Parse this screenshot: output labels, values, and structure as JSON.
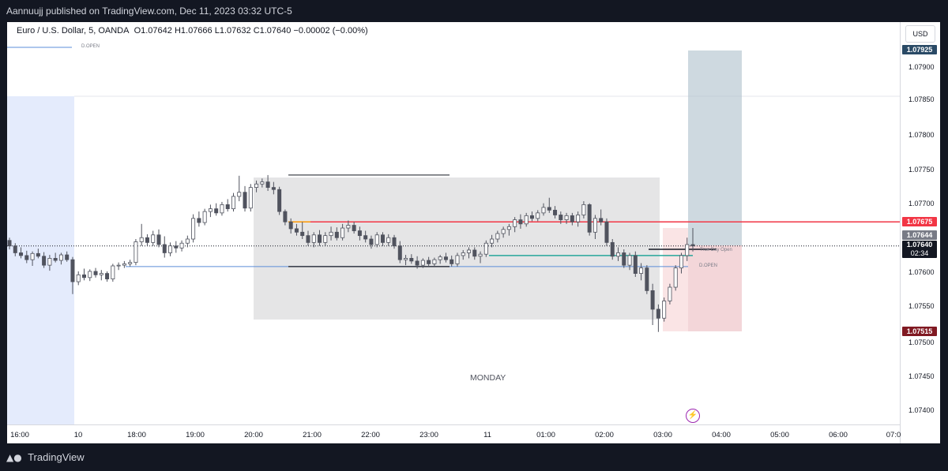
{
  "header": {
    "published": "Aannuujj published on TradingView.com, Dec 11, 2023 03:32 UTC-5"
  },
  "legend": {
    "symbol": "Euro / U.S. Dollar, 5, OANDA",
    "open": "O1.07642",
    "high": "H1.07666",
    "low": "L1.07632",
    "close": "C1.07640",
    "change": "−0.00002 (−0.00%)"
  },
  "currency_button": "USD",
  "labels": {
    "dopen_a": "D.OPEN",
    "dopen_b": "D.OPEN",
    "true_day_open": "True Day Open",
    "session": "MONDAY"
  },
  "badges": {
    "target": "1.07925",
    "red_line": "1.07675",
    "gray": "1.07644",
    "last": "1.07640",
    "countdown": "02:34",
    "stop": "1.07515"
  },
  "colors": {
    "up": "#ffffff",
    "down": "#50535e",
    "red_line": "#f23645",
    "target_badge": "#2a4a66",
    "stop_badge": "#801922",
    "last_badge": "#131722",
    "gray_badge": "#787b86"
  },
  "footer": {
    "brand": "TradingView"
  },
  "chart_data": {
    "type": "candlestick",
    "symbol": "EURUSD",
    "interval": "5",
    "y_ticks": [
      "1.07900",
      "1.07850",
      "1.07800",
      "1.07750",
      "1.07700",
      "1.07650",
      "1.07600",
      "1.07550",
      "1.07500",
      "1.07450",
      "1.07400"
    ],
    "x_ticks": [
      "16:00",
      "10",
      "18:00",
      "19:00",
      "20:00",
      "21:00",
      "22:00",
      "23:00",
      "11",
      "01:00",
      "02:00",
      "03:00",
      "04:00",
      "05:00",
      "06:00",
      "07:0"
    ],
    "ylim": [
      1.0738,
      1.0798
    ],
    "levels": {
      "red_horizontal": 1.07675,
      "d_open": 1.0761,
      "true_day_open": 1.07626,
      "last_price": 1.0764,
      "range_high": 1.07743,
      "range_low": 1.0761
    },
    "candles": [
      {
        "o": 1.07648,
        "h": 1.07652,
        "l": 1.07635,
        "c": 1.0764
      },
      {
        "o": 1.0764,
        "h": 1.07644,
        "l": 1.07625,
        "c": 1.0763
      },
      {
        "o": 1.0763,
        "h": 1.07638,
        "l": 1.07622,
        "c": 1.07626
      },
      {
        "o": 1.07626,
        "h": 1.07633,
        "l": 1.07615,
        "c": 1.0762
      },
      {
        "o": 1.0762,
        "h": 1.07632,
        "l": 1.07611,
        "c": 1.07629
      },
      {
        "o": 1.07629,
        "h": 1.07636,
        "l": 1.07622,
        "c": 1.07625
      },
      {
        "o": 1.07625,
        "h": 1.07631,
        "l": 1.07608,
        "c": 1.07612
      },
      {
        "o": 1.07612,
        "h": 1.07627,
        "l": 1.07604,
        "c": 1.07622
      },
      {
        "o": 1.07622,
        "h": 1.0763,
        "l": 1.07616,
        "c": 1.07619
      },
      {
        "o": 1.07619,
        "h": 1.0763,
        "l": 1.07613,
        "c": 1.07627
      },
      {
        "o": 1.07627,
        "h": 1.07632,
        "l": 1.07617,
        "c": 1.0762
      },
      {
        "o": 1.0762,
        "h": 1.07624,
        "l": 1.0757,
        "c": 1.07588
      },
      {
        "o": 1.07588,
        "h": 1.07603,
        "l": 1.07583,
        "c": 1.07598
      },
      {
        "o": 1.07598,
        "h": 1.07607,
        "l": 1.0759,
        "c": 1.07594
      },
      {
        "o": 1.07594,
        "h": 1.07606,
        "l": 1.07589,
        "c": 1.07603
      },
      {
        "o": 1.07603,
        "h": 1.07608,
        "l": 1.07594,
        "c": 1.07598
      },
      {
        "o": 1.07598,
        "h": 1.07605,
        "l": 1.0759,
        "c": 1.076
      },
      {
        "o": 1.076,
        "h": 1.07603,
        "l": 1.07588,
        "c": 1.07592
      },
      {
        "o": 1.07592,
        "h": 1.07614,
        "l": 1.07588,
        "c": 1.07611
      },
      {
        "o": 1.07611,
        "h": 1.07616,
        "l": 1.07605,
        "c": 1.07612
      },
      {
        "o": 1.07612,
        "h": 1.07618,
        "l": 1.07608,
        "c": 1.07614
      },
      {
        "o": 1.07614,
        "h": 1.0762,
        "l": 1.0761,
        "c": 1.07616
      },
      {
        "o": 1.07616,
        "h": 1.0765,
        "l": 1.07612,
        "c": 1.07646
      },
      {
        "o": 1.07646,
        "h": 1.07672,
        "l": 1.0764,
        "c": 1.07652
      },
      {
        "o": 1.07652,
        "h": 1.07657,
        "l": 1.0764,
        "c": 1.07645
      },
      {
        "o": 1.07645,
        "h": 1.07662,
        "l": 1.0764,
        "c": 1.07656
      },
      {
        "o": 1.07656,
        "h": 1.07664,
        "l": 1.07638,
        "c": 1.07642
      },
      {
        "o": 1.07642,
        "h": 1.07654,
        "l": 1.07623,
        "c": 1.0763
      },
      {
        "o": 1.0763,
        "h": 1.07645,
        "l": 1.07625,
        "c": 1.0764
      },
      {
        "o": 1.0764,
        "h": 1.07647,
        "l": 1.0763,
        "c": 1.07637
      },
      {
        "o": 1.07637,
        "h": 1.07648,
        "l": 1.07632,
        "c": 1.07644
      },
      {
        "o": 1.07644,
        "h": 1.07655,
        "l": 1.07638,
        "c": 1.0765
      },
      {
        "o": 1.0765,
        "h": 1.07686,
        "l": 1.07645,
        "c": 1.0768
      },
      {
        "o": 1.0768,
        "h": 1.0769,
        "l": 1.07668,
        "c": 1.07674
      },
      {
        "o": 1.07674,
        "h": 1.07694,
        "l": 1.0767,
        "c": 1.0769
      },
      {
        "o": 1.0769,
        "h": 1.077,
        "l": 1.07682,
        "c": 1.07694
      },
      {
        "o": 1.07694,
        "h": 1.07702,
        "l": 1.07684,
        "c": 1.07688
      },
      {
        "o": 1.07688,
        "h": 1.07704,
        "l": 1.07684,
        "c": 1.077
      },
      {
        "o": 1.077,
        "h": 1.07708,
        "l": 1.0769,
        "c": 1.07694
      },
      {
        "o": 1.07694,
        "h": 1.07717,
        "l": 1.0769,
        "c": 1.07712
      },
      {
        "o": 1.07712,
        "h": 1.07742,
        "l": 1.07705,
        "c": 1.07718
      },
      {
        "o": 1.07718,
        "h": 1.07727,
        "l": 1.0769,
        "c": 1.07695
      },
      {
        "o": 1.07695,
        "h": 1.0773,
        "l": 1.0769,
        "c": 1.07725
      },
      {
        "o": 1.07725,
        "h": 1.07735,
        "l": 1.07718,
        "c": 1.0773
      },
      {
        "o": 1.0773,
        "h": 1.07738,
        "l": 1.07725,
        "c": 1.07733
      },
      {
        "o": 1.07733,
        "h": 1.07743,
        "l": 1.0772,
        "c": 1.07725
      },
      {
        "o": 1.07725,
        "h": 1.07733,
        "l": 1.07715,
        "c": 1.07722
      },
      {
        "o": 1.07722,
        "h": 1.07726,
        "l": 1.07685,
        "c": 1.0769
      },
      {
        "o": 1.0769,
        "h": 1.07693,
        "l": 1.0767,
        "c": 1.07675
      },
      {
        "o": 1.07675,
        "h": 1.0768,
        "l": 1.07658,
        "c": 1.07665
      },
      {
        "o": 1.07665,
        "h": 1.07672,
        "l": 1.07655,
        "c": 1.0766
      },
      {
        "o": 1.0766,
        "h": 1.07675,
        "l": 1.0765,
        "c": 1.07655
      },
      {
        "o": 1.07655,
        "h": 1.07662,
        "l": 1.0764,
        "c": 1.07645
      },
      {
        "o": 1.07645,
        "h": 1.0766,
        "l": 1.07638,
        "c": 1.07656
      },
      {
        "o": 1.07656,
        "h": 1.07663,
        "l": 1.0764,
        "c": 1.07645
      },
      {
        "o": 1.07645,
        "h": 1.0766,
        "l": 1.0764,
        "c": 1.07655
      },
      {
        "o": 1.07655,
        "h": 1.07668,
        "l": 1.07648,
        "c": 1.0766
      },
      {
        "o": 1.0766,
        "h": 1.07667,
        "l": 1.07648,
        "c": 1.07652
      },
      {
        "o": 1.07652,
        "h": 1.07672,
        "l": 1.07648,
        "c": 1.07666
      },
      {
        "o": 1.07666,
        "h": 1.07677,
        "l": 1.0766,
        "c": 1.0767
      },
      {
        "o": 1.0767,
        "h": 1.07675,
        "l": 1.07658,
        "c": 1.07662
      },
      {
        "o": 1.07662,
        "h": 1.07668,
        "l": 1.07648,
        "c": 1.07655
      },
      {
        "o": 1.07655,
        "h": 1.07662,
        "l": 1.07645,
        "c": 1.0765
      },
      {
        "o": 1.0765,
        "h": 1.07655,
        "l": 1.07636,
        "c": 1.07642
      },
      {
        "o": 1.07642,
        "h": 1.0766,
        "l": 1.07638,
        "c": 1.07656
      },
      {
        "o": 1.07656,
        "h": 1.0766,
        "l": 1.0764,
        "c": 1.07645
      },
      {
        "o": 1.07645,
        "h": 1.07657,
        "l": 1.0764,
        "c": 1.07652
      },
      {
        "o": 1.07652,
        "h": 1.07656,
        "l": 1.07636,
        "c": 1.0764
      },
      {
        "o": 1.0764,
        "h": 1.07647,
        "l": 1.07615,
        "c": 1.0762
      },
      {
        "o": 1.0762,
        "h": 1.07627,
        "l": 1.07612,
        "c": 1.07622
      },
      {
        "o": 1.07622,
        "h": 1.07628,
        "l": 1.07614,
        "c": 1.07618
      },
      {
        "o": 1.07618,
        "h": 1.07625,
        "l": 1.07607,
        "c": 1.07612
      },
      {
        "o": 1.07612,
        "h": 1.07622,
        "l": 1.07608,
        "c": 1.07619
      },
      {
        "o": 1.07619,
        "h": 1.07624,
        "l": 1.0761,
        "c": 1.07614
      },
      {
        "o": 1.07614,
        "h": 1.07623,
        "l": 1.0761,
        "c": 1.0762
      },
      {
        "o": 1.0762,
        "h": 1.07627,
        "l": 1.07614,
        "c": 1.07624
      },
      {
        "o": 1.07624,
        "h": 1.0763,
        "l": 1.07616,
        "c": 1.0762
      },
      {
        "o": 1.0762,
        "h": 1.07626,
        "l": 1.0761,
        "c": 1.07614
      },
      {
        "o": 1.07614,
        "h": 1.0763,
        "l": 1.0761,
        "c": 1.07626
      },
      {
        "o": 1.07626,
        "h": 1.07634,
        "l": 1.0762,
        "c": 1.0763
      },
      {
        "o": 1.0763,
        "h": 1.07638,
        "l": 1.07622,
        "c": 1.07634
      },
      {
        "o": 1.07634,
        "h": 1.07638,
        "l": 1.0762,
        "c": 1.07625
      },
      {
        "o": 1.07625,
        "h": 1.07632,
        "l": 1.07615,
        "c": 1.07628
      },
      {
        "o": 1.07628,
        "h": 1.07648,
        "l": 1.07624,
        "c": 1.07644
      },
      {
        "o": 1.07644,
        "h": 1.07656,
        "l": 1.07638,
        "c": 1.0765
      },
      {
        "o": 1.0765,
        "h": 1.07662,
        "l": 1.07645,
        "c": 1.07658
      },
      {
        "o": 1.07658,
        "h": 1.07668,
        "l": 1.07652,
        "c": 1.07664
      },
      {
        "o": 1.07664,
        "h": 1.07672,
        "l": 1.07655,
        "c": 1.07668
      },
      {
        "o": 1.07668,
        "h": 1.07682,
        "l": 1.0766,
        "c": 1.07678
      },
      {
        "o": 1.07678,
        "h": 1.07686,
        "l": 1.07665,
        "c": 1.07672
      },
      {
        "o": 1.07672,
        "h": 1.07688,
        "l": 1.07668,
        "c": 1.07684
      },
      {
        "o": 1.07684,
        "h": 1.0769,
        "l": 1.07676,
        "c": 1.0768
      },
      {
        "o": 1.0768,
        "h": 1.07692,
        "l": 1.07676,
        "c": 1.07688
      },
      {
        "o": 1.07688,
        "h": 1.07702,
        "l": 1.07684,
        "c": 1.07696
      },
      {
        "o": 1.07696,
        "h": 1.0771,
        "l": 1.07688,
        "c": 1.07692
      },
      {
        "o": 1.07692,
        "h": 1.07698,
        "l": 1.0768,
        "c": 1.07685
      },
      {
        "o": 1.07685,
        "h": 1.0769,
        "l": 1.07672,
        "c": 1.07678
      },
      {
        "o": 1.07678,
        "h": 1.07688,
        "l": 1.07672,
        "c": 1.07684
      },
      {
        "o": 1.07684,
        "h": 1.07688,
        "l": 1.0767,
        "c": 1.07675
      },
      {
        "o": 1.07675,
        "h": 1.0769,
        "l": 1.07668,
        "c": 1.07685
      },
      {
        "o": 1.07685,
        "h": 1.07705,
        "l": 1.0768,
        "c": 1.077
      },
      {
        "o": 1.077,
        "h": 1.07702,
        "l": 1.07655,
        "c": 1.0766
      },
      {
        "o": 1.0766,
        "h": 1.07685,
        "l": 1.0765,
        "c": 1.0768
      },
      {
        "o": 1.0768,
        "h": 1.07693,
        "l": 1.0767,
        "c": 1.07675
      },
      {
        "o": 1.07675,
        "h": 1.0768,
        "l": 1.0764,
        "c": 1.07645
      },
      {
        "o": 1.07645,
        "h": 1.0765,
        "l": 1.0762,
        "c": 1.07625
      },
      {
        "o": 1.07625,
        "h": 1.07638,
        "l": 1.07618,
        "c": 1.0763
      },
      {
        "o": 1.0763,
        "h": 1.07635,
        "l": 1.07608,
        "c": 1.07612
      },
      {
        "o": 1.07612,
        "h": 1.0763,
        "l": 1.07605,
        "c": 1.07626
      },
      {
        "o": 1.07626,
        "h": 1.07632,
        "l": 1.07595,
        "c": 1.076
      },
      {
        "o": 1.076,
        "h": 1.07615,
        "l": 1.0759,
        "c": 1.07608
      },
      {
        "o": 1.07608,
        "h": 1.07612,
        "l": 1.0757,
        "c": 1.07575
      },
      {
        "o": 1.07575,
        "h": 1.07585,
        "l": 1.07525,
        "c": 1.07548
      },
      {
        "o": 1.07548,
        "h": 1.07555,
        "l": 1.07515,
        "c": 1.07535
      },
      {
        "o": 1.07535,
        "h": 1.07565,
        "l": 1.0753,
        "c": 1.0756
      },
      {
        "o": 1.0756,
        "h": 1.07585,
        "l": 1.07555,
        "c": 1.0758
      },
      {
        "o": 1.0758,
        "h": 1.07612,
        "l": 1.07575,
        "c": 1.07608
      },
      {
        "o": 1.07608,
        "h": 1.0763,
        "l": 1.076,
        "c": 1.07626
      },
      {
        "o": 1.07626,
        "h": 1.07652,
        "l": 1.07618,
        "c": 1.07642
      },
      {
        "o": 1.07642,
        "h": 1.07666,
        "l": 1.07632,
        "c": 1.0764
      }
    ]
  }
}
